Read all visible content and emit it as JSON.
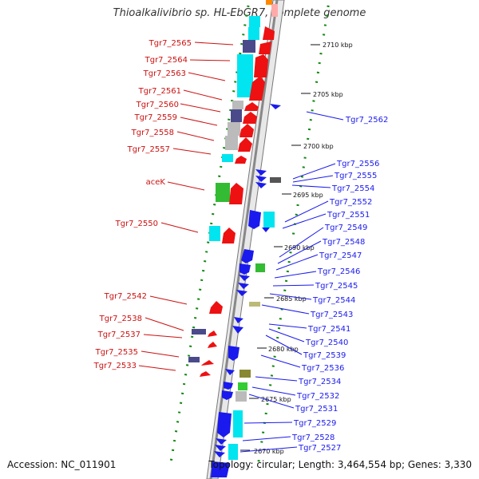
{
  "title": "Thioalkalivibrio sp. HL-EbGR7, complete genome",
  "accession": "Accession: NC_011901",
  "summary": "Topology: circular; Length: 3,464,554 bp; Genes: 3,330",
  "ticks": [
    "2710 kbp",
    "2705 kbp",
    "2700 kbp",
    "2695 kbp",
    "2690 kbp",
    "2685 kbp",
    "2680 kbp",
    "2675 kbp",
    "2670 kbp"
  ],
  "left_labels": [
    "Tgr7_2565",
    "Tgr7_2564",
    "Tgr7_2563",
    "Tgr7_2561",
    "Tgr7_2560",
    "Tgr7_2559",
    "Tgr7_2558",
    "Tgr7_2557",
    "aceK",
    "Tgr7_2550",
    "Tgr7_2542",
    "Tgr7_2538",
    "Tgr7_2537",
    "Tgr7_2535",
    "Tgr7_2533"
  ],
  "right_labels": [
    "Tgr7_2562",
    "Tgr7_2556",
    "Tgr7_2555",
    "Tgr7_2554",
    "Tgr7_2552",
    "Tgr7_2551",
    "Tgr7_2549",
    "Tgr7_2548",
    "Tgr7_2547",
    "Tgr7_2546",
    "Tgr7_2545",
    "Tgr7_2544",
    "Tgr7_2543",
    "Tgr7_2541",
    "Tgr7_2540",
    "Tgr7_2539",
    "Tgr7_2536",
    "Tgr7_2534",
    "Tgr7_2532",
    "Tgr7_2531",
    "Tgr7_2529",
    "Tgr7_2528",
    "Tgr7_2527"
  ],
  "colors": {
    "forward": "#ee1111",
    "reverse": "#1a1aee",
    "backbone": "#888888",
    "gc_track": "#118811",
    "cyan": "#00e5f0",
    "navy": "#4a4a8a",
    "gray": "#bbbbbb",
    "green": "#33bb33"
  }
}
